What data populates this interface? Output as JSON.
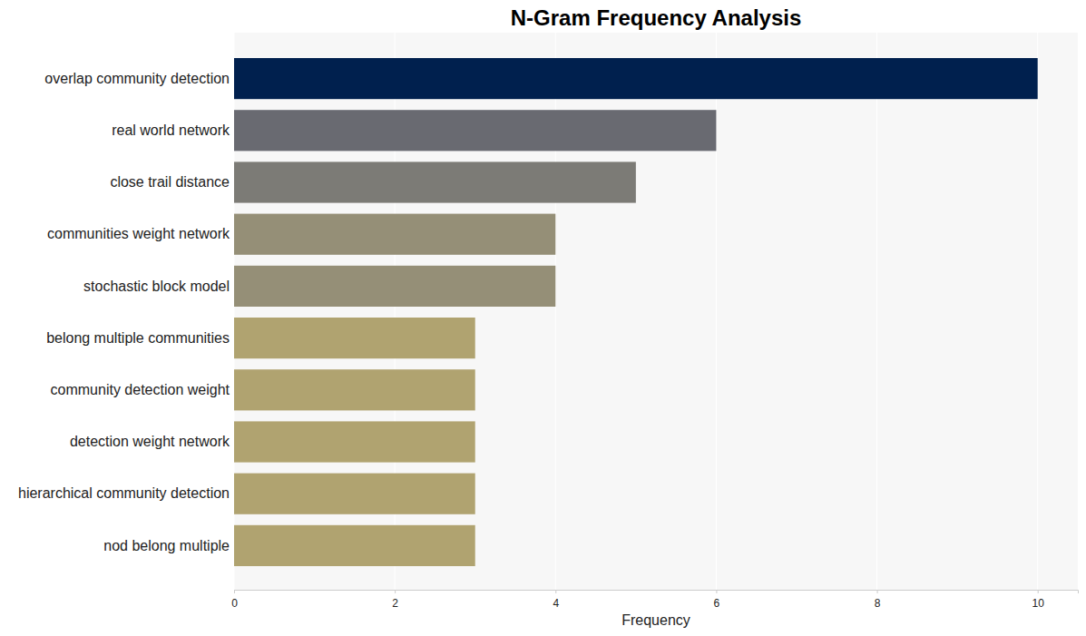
{
  "chart_data": {
    "type": "bar",
    "orientation": "horizontal",
    "title": "N-Gram Frequency Analysis",
    "x_label": "Frequency",
    "categories": [
      "overlap community detection",
      "real world network",
      "close trail distance",
      "communities weight network",
      "stochastic block model",
      "belong multiple communities",
      "community detection weight",
      "detection weight network",
      "hierarchical community detection",
      "nod belong multiple"
    ],
    "values": [
      10,
      6,
      5,
      4,
      4,
      3,
      3,
      3,
      3,
      3
    ],
    "colors": [
      "#00204e",
      "#696a71",
      "#7c7b76",
      "#958f77",
      "#958f77",
      "#b0a370",
      "#b0a370",
      "#b0a370",
      "#b0a370",
      "#b0a370"
    ],
    "xlim": [
      0,
      10.5
    ],
    "xticks": [
      0,
      2,
      4,
      6,
      8,
      10
    ],
    "grid": true
  }
}
